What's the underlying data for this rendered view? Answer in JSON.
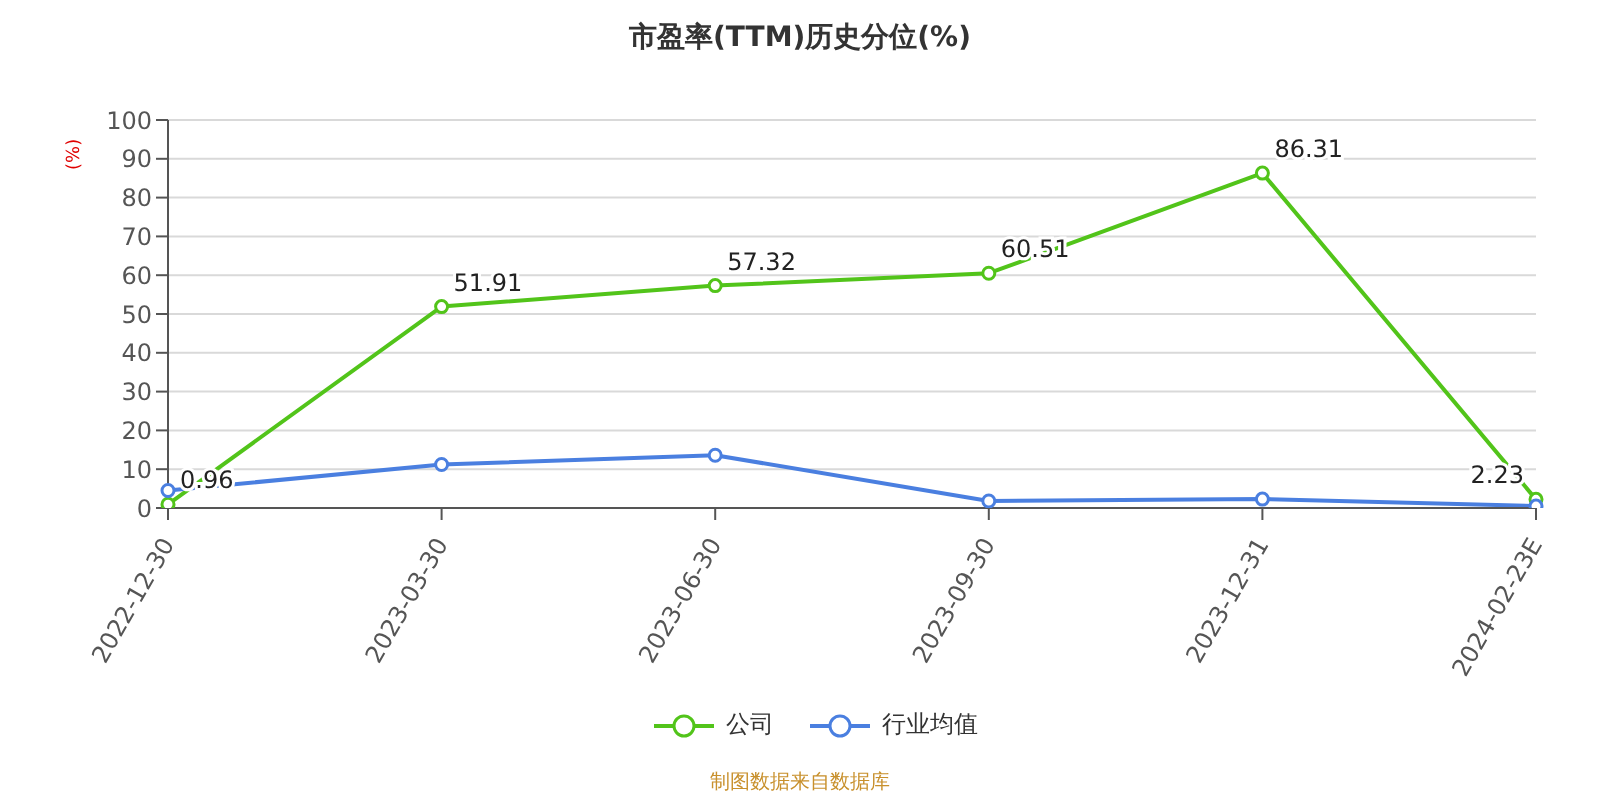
{
  "chart_data": {
    "type": "line",
    "title": "市盈率(TTM)历史分位(%)",
    "ylabel": "(%)",
    "categories": [
      "2022-12-30",
      "2023-03-30",
      "2023-06-30",
      "2023-09-30",
      "2023-12-31",
      "2024-02-23E"
    ],
    "series": [
      {
        "name": "公司",
        "color": "#52c41a",
        "values": [
          0.96,
          51.91,
          57.32,
          60.51,
          86.31,
          2.23
        ],
        "value_labels": [
          "0.96",
          "51.91",
          "57.32",
          "60.51",
          "86.31",
          "2.23"
        ]
      },
      {
        "name": "行业均值",
        "color": "#4a7fe0",
        "values": [
          4.5,
          11.2,
          13.6,
          1.8,
          2.3,
          0.5
        ]
      }
    ],
    "ylim": [
      0,
      100
    ],
    "yticks": [
      0,
      10,
      20,
      30,
      40,
      50,
      60,
      70,
      80,
      90,
      100
    ],
    "grid": "y",
    "legend": "bottom",
    "marker": "circle",
    "line_style": "solid",
    "annotations": [
      "制图数据来自数据库"
    ]
  }
}
